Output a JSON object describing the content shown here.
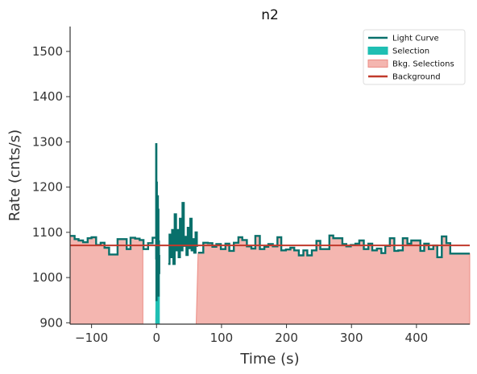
{
  "chart_data": {
    "type": "line",
    "title": "n2",
    "xlabel": "Time (s)",
    "ylabel": "Rate (cnts/s)",
    "xlim": [
      -133,
      482
    ],
    "ylim": [
      897,
      1555
    ],
    "xticks": [
      -100,
      0,
      100,
      200,
      300,
      400
    ],
    "yticks": [
      900,
      1000,
      1100,
      1200,
      1300,
      1400,
      1500
    ],
    "grid": false,
    "legend_position": "top-right",
    "colors": {
      "light_curve": "#08706b",
      "selection": "#1fbfb3",
      "bkg_selection_fill": "#f4b6b0",
      "bkg_selection_edge": "#eb8c84",
      "background": "#c1392b",
      "axis": "#333333"
    },
    "legend": [
      {
        "label": "Light Curve",
        "kind": "line",
        "color_key": "light_curve"
      },
      {
        "label": "Selection",
        "kind": "patch",
        "color_key": "selection"
      },
      {
        "label": "Bkg. Selections",
        "kind": "patch",
        "color_key": "bkg_selection_fill"
      },
      {
        "label": "Background",
        "kind": "line",
        "color_key": "background"
      }
    ],
    "background_level": 1071,
    "selection_interval": [
      -2,
      5
    ],
    "bkg_selection_intervals": [
      [
        -133,
        -21
      ],
      [
        61,
        482
      ]
    ],
    "light_curve_left": {
      "x": [
        -133,
        -126,
        -120,
        -113,
        -106,
        -100,
        -93,
        -86,
        -80,
        -73,
        -66,
        -60,
        -53,
        -46,
        -40,
        -33,
        -26,
        -20,
        -13,
        -6
      ],
      "y": [
        1092,
        1085,
        1082,
        1078,
        1087,
        1089,
        1072,
        1077,
        1066,
        1051,
        1051,
        1085,
        1085,
        1063,
        1088,
        1086,
        1083,
        1063,
        1076,
        1088
      ]
    },
    "spike": {
      "x": [
        -1,
        -0.6,
        -0.2,
        0.2,
        0.6,
        1,
        1.4,
        1.8,
        2.2,
        2.6,
        3.0,
        3.4,
        3.8,
        4.2
      ],
      "y": [
        1040,
        1295,
        950,
        1210,
        960,
        1100,
        1000,
        1180,
        1030,
        1150,
        960,
        1080,
        1010,
        1050
      ]
    },
    "light_curve_mid": {
      "x": [
        18,
        20,
        22,
        24,
        26,
        28,
        30,
        32,
        34,
        36,
        38,
        40,
        42,
        44,
        46,
        48,
        50,
        52,
        54,
        56,
        58,
        60,
        62
      ],
      "y": [
        1030,
        1095,
        1045,
        1105,
        1030,
        1140,
        1060,
        1105,
        1045,
        1130,
        1060,
        1165,
        1070,
        1090,
        1050,
        1110,
        1065,
        1130,
        1060,
        1085,
        1055,
        1100,
        1070
      ]
    },
    "light_curve_right": {
      "x": [
        64,
        72,
        79,
        86,
        92,
        99,
        106,
        112,
        119,
        126,
        132,
        139,
        146,
        152,
        159,
        166,
        172,
        179,
        186,
        192,
        199,
        206,
        212,
        219,
        226,
        232,
        239,
        246,
        252,
        259,
        266,
        272,
        279,
        286,
        292,
        299,
        306,
        312,
        319,
        326,
        332,
        339,
        346,
        352,
        359,
        366,
        372,
        379,
        386,
        392,
        399,
        406,
        412,
        419,
        426,
        432,
        439,
        446,
        452,
        459,
        466,
        472,
        479
      ],
      "y": [
        1055,
        1077,
        1076,
        1068,
        1074,
        1063,
        1075,
        1059,
        1077,
        1089,
        1083,
        1069,
        1064,
        1092,
        1063,
        1068,
        1074,
        1069,
        1089,
        1060,
        1062,
        1066,
        1060,
        1049,
        1060,
        1049,
        1060,
        1081,
        1063,
        1063,
        1093,
        1087,
        1087,
        1074,
        1069,
        1072,
        1075,
        1082,
        1063,
        1075,
        1060,
        1064,
        1054,
        1070,
        1087,
        1059,
        1060,
        1087,
        1075,
        1082,
        1082,
        1059,
        1075,
        1063,
        1071,
        1045,
        1091,
        1076,
        1053,
        1053,
        1053,
        1053,
        1053
      ]
    }
  }
}
